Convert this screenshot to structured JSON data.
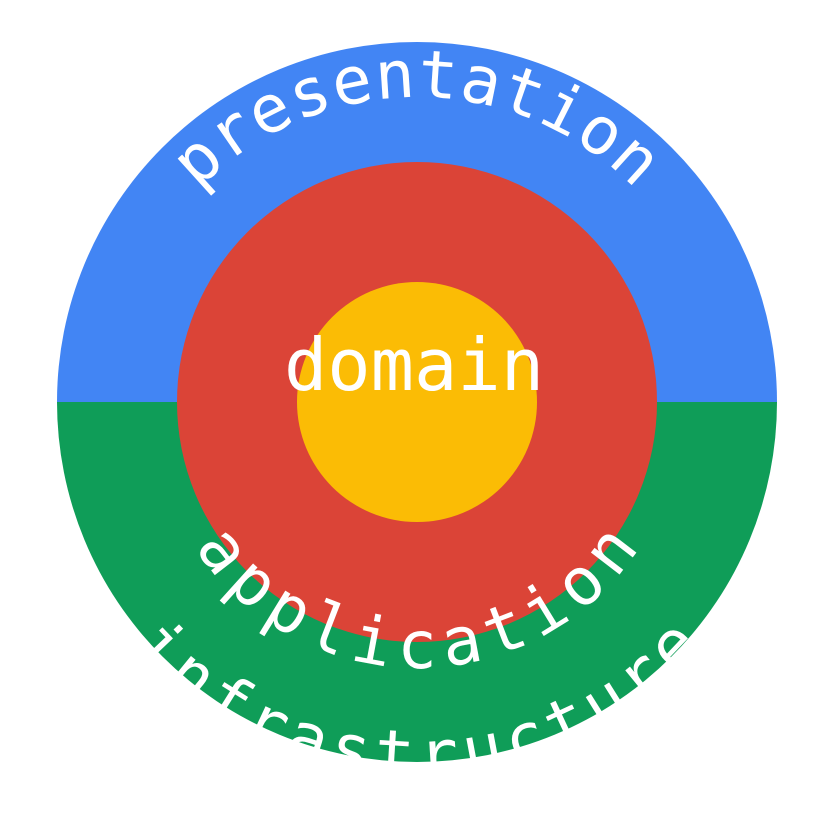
{
  "layers": {
    "presentation": {
      "label": "presentation",
      "color": "#4285F4"
    },
    "infrastructure": {
      "label": "infrastructure",
      "color": "#0F9D58"
    },
    "application": {
      "label": "application",
      "color": "#DB4437"
    },
    "domain": {
      "label": "domain",
      "color": "#FBBC05"
    }
  }
}
